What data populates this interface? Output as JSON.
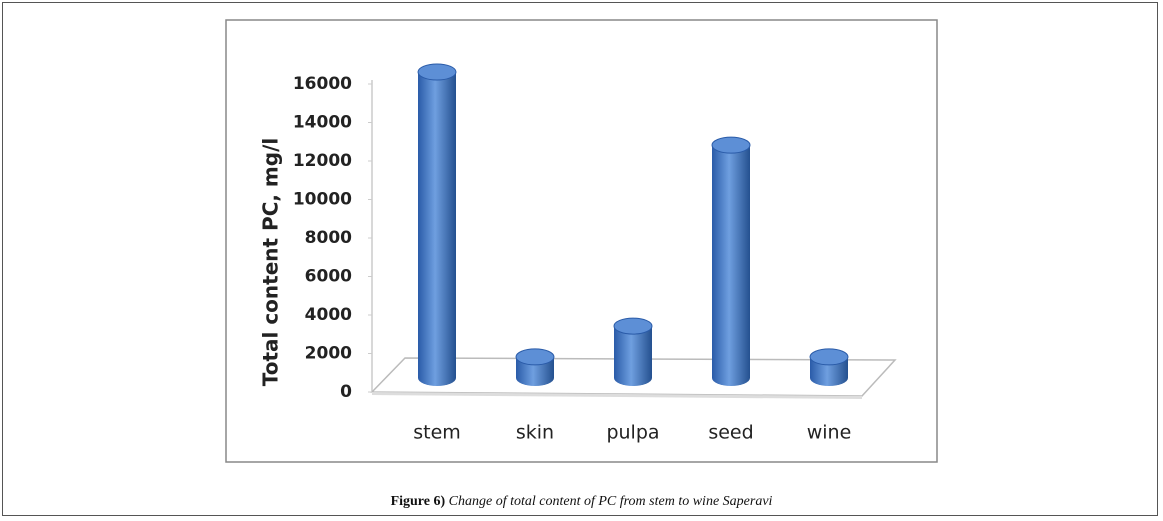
{
  "chart_data": {
    "type": "bar",
    "y_label": "Total content PC, mg/l",
    "categories": [
      "stem",
      "skin",
      "pulpa",
      "seed",
      "wine"
    ],
    "values": [
      16000,
      1200,
      2800,
      12200,
      1200
    ],
    "color": "#3a6fc0",
    "ylim": [
      0,
      16000
    ],
    "yticks": [
      0,
      2000,
      4000,
      6000,
      8000,
      10000,
      12000,
      14000,
      16000
    ]
  },
  "caption": {
    "label": "Figure 6)",
    "text": "Change of total content of PC from stem to wine Saperavi"
  }
}
